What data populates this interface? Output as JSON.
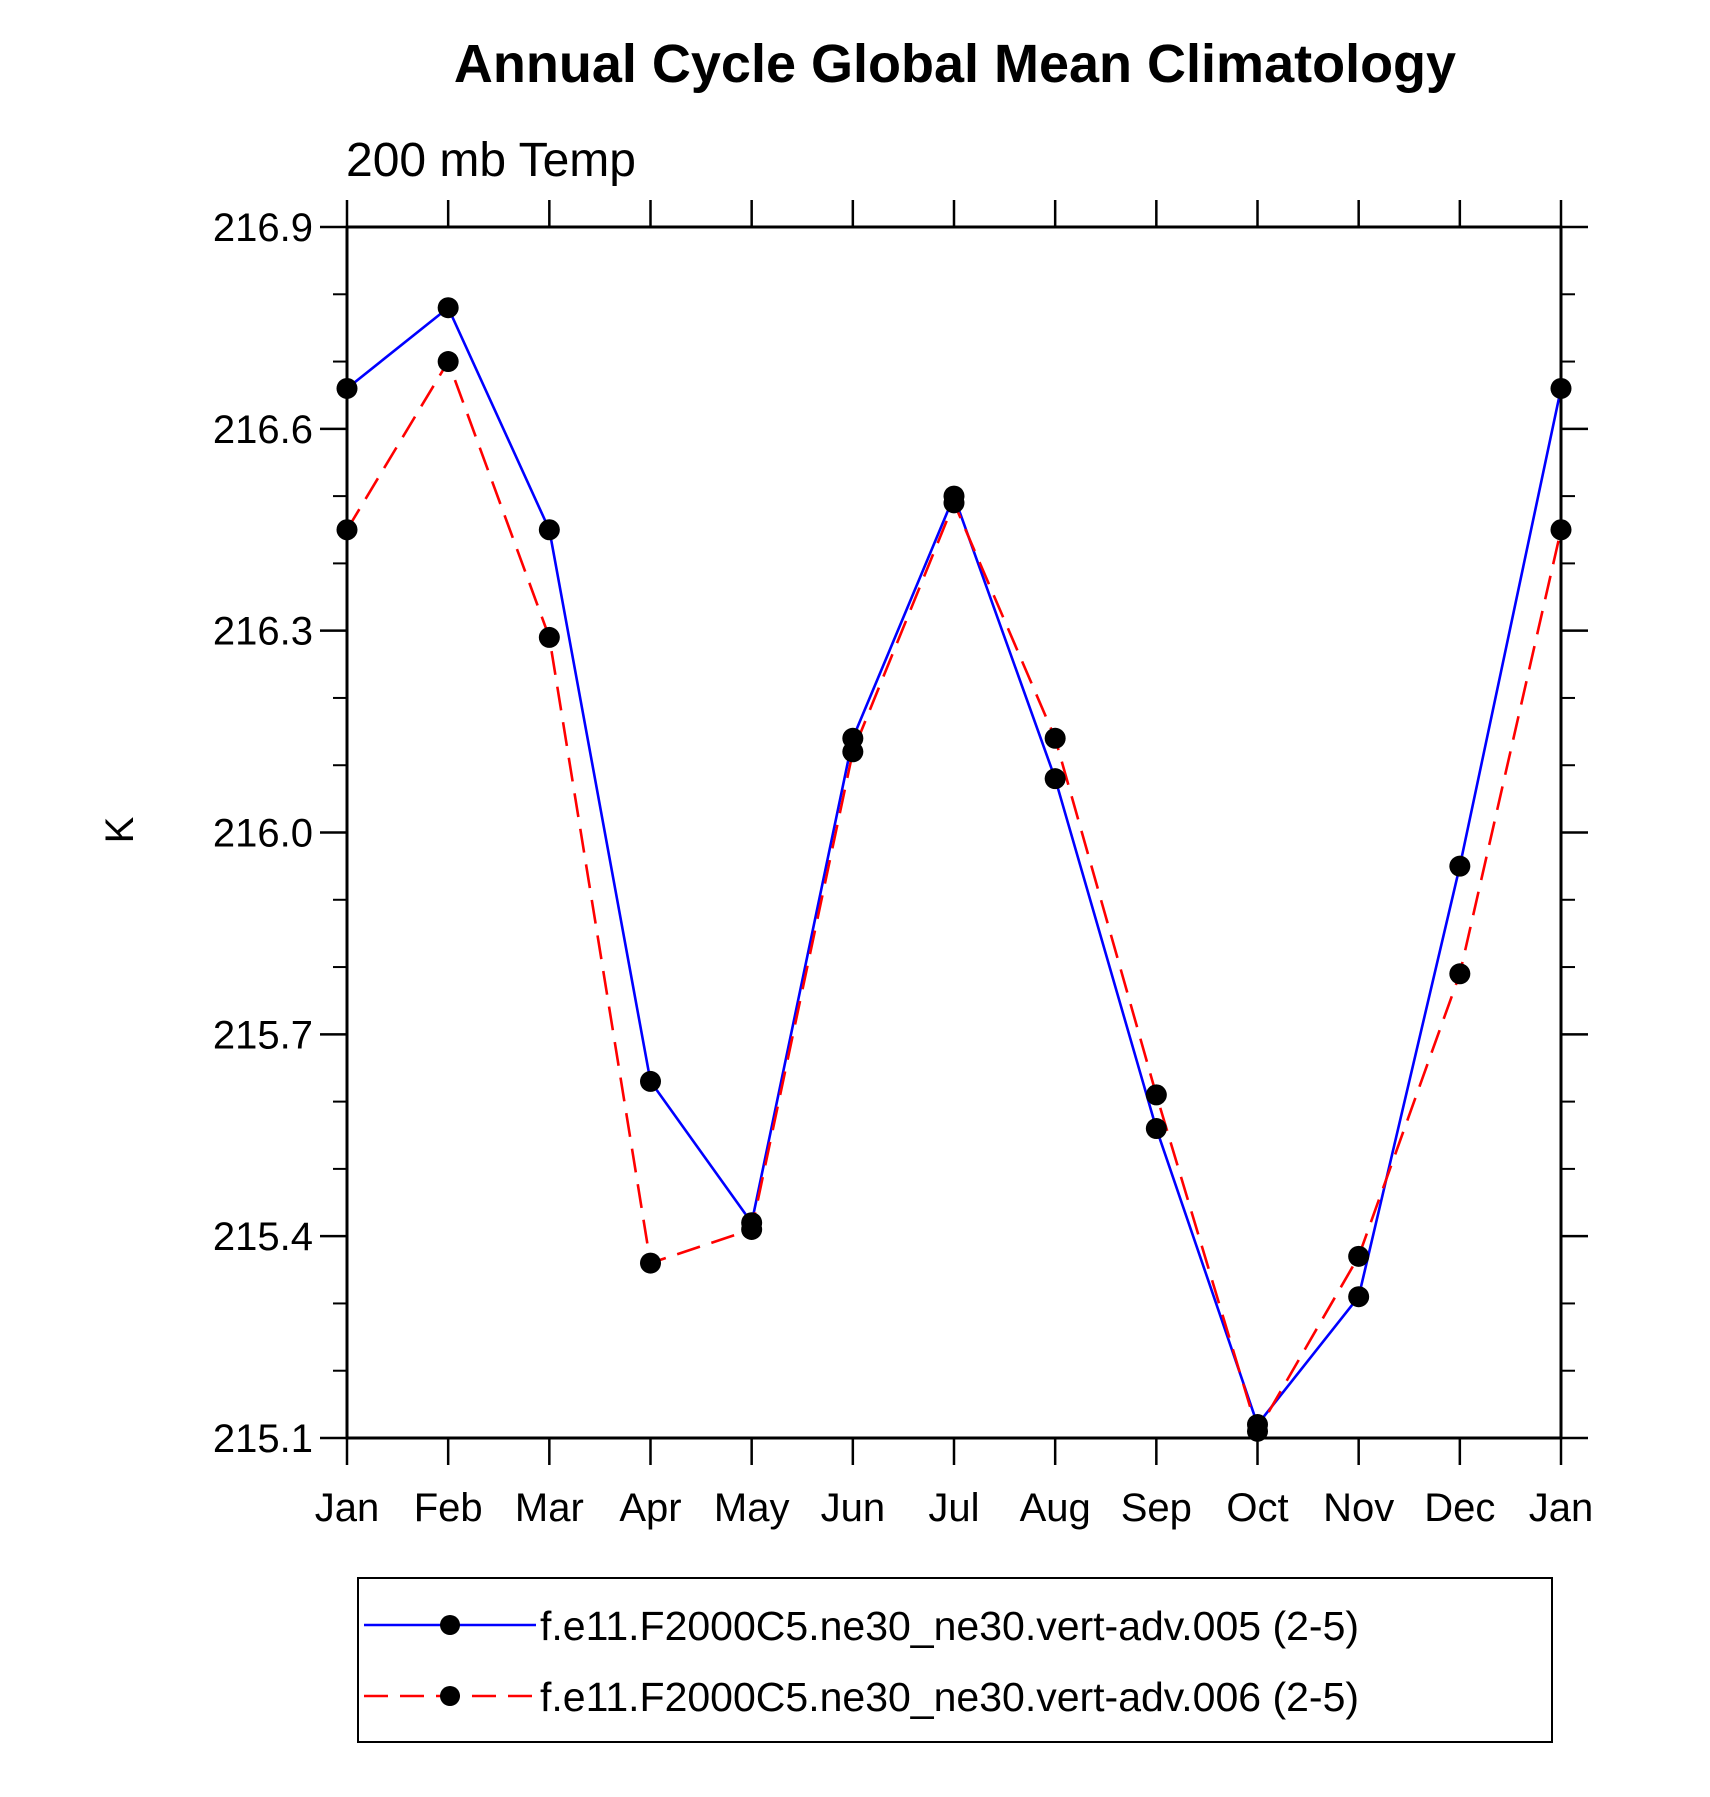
{
  "chart_data": {
    "type": "line",
    "title": "Annual Cycle Global Mean Climatology",
    "subtitle": "200 mb Temp",
    "xlabel": "",
    "ylabel": "K",
    "categories": [
      "Jan",
      "Feb",
      "Mar",
      "Apr",
      "May",
      "Jun",
      "Jul",
      "Aug",
      "Sep",
      "Oct",
      "Nov",
      "Dec",
      "Jan"
    ],
    "ylim": [
      215.1,
      216.9
    ],
    "yticks": [
      "216.9",
      "216.6",
      "216.3",
      "216.0",
      "215.7",
      "215.4",
      "215.1"
    ],
    "ytick_values": [
      216.9,
      216.6,
      216.3,
      216.0,
      215.7,
      215.4,
      215.1
    ],
    "y_minor_step": 0.1,
    "series": [
      {
        "name": "f.e11.F2000C5.ne30_ne30.vert-adv.005 (2-5)",
        "color": "#0000ff",
        "dash": "solid",
        "marker": "filled-circle",
        "values": [
          216.66,
          216.78,
          216.45,
          215.63,
          215.42,
          216.14,
          216.5,
          216.08,
          215.56,
          215.12,
          215.31,
          215.95,
          216.66
        ]
      },
      {
        "name": "f.e11.F2000C5.ne30_ne30.vert-adv.006 (2-5)",
        "color": "#ff0000",
        "dash": "dashed",
        "marker": "filled-circle",
        "values": [
          216.45,
          216.7,
          216.29,
          215.36,
          215.41,
          216.12,
          216.49,
          216.14,
          215.61,
          215.11,
          215.37,
          215.79,
          216.45
        ]
      }
    ],
    "legend_position": "bottom"
  }
}
